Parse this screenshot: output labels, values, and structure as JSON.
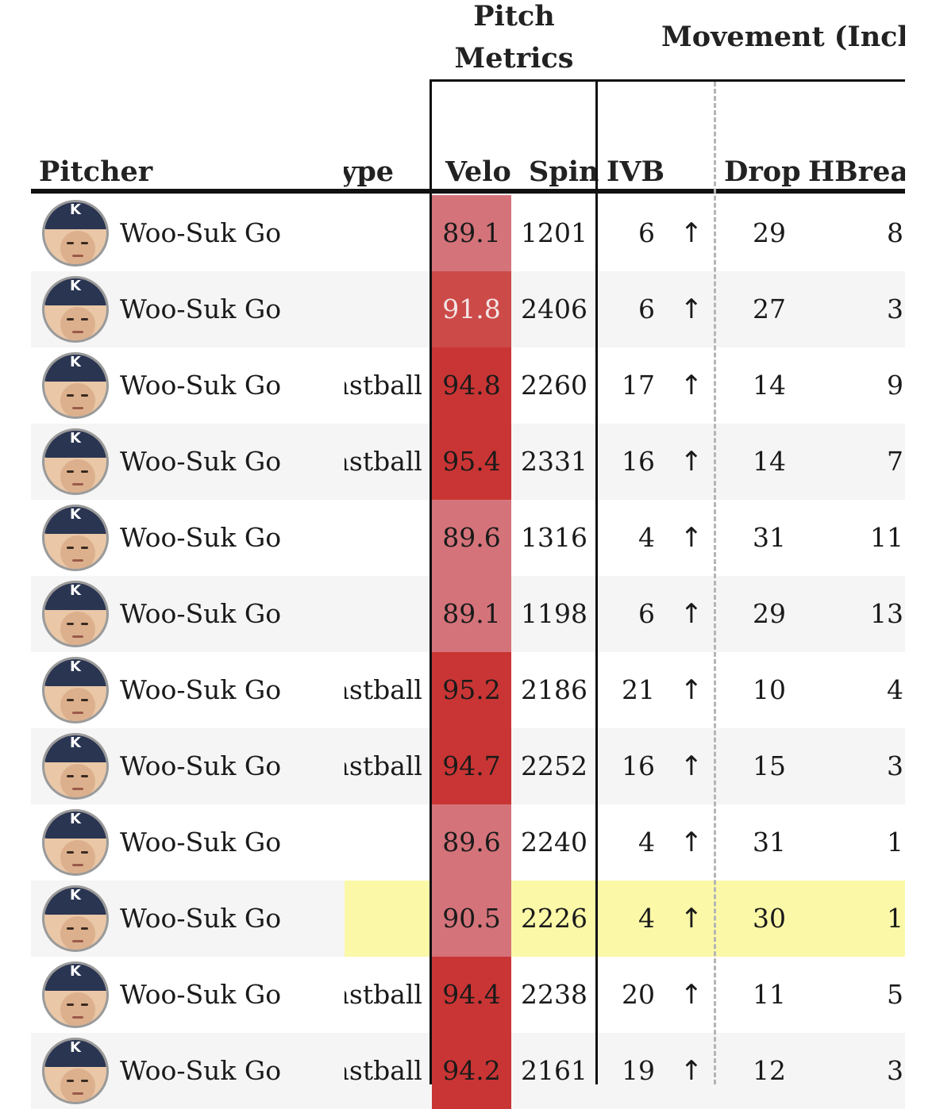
{
  "header": {
    "group_pitch_metrics": "Pitch\nMetrics",
    "group_movement": "Movement (Inches",
    "col_pitcher": "Pitcher",
    "col_type": "ype",
    "col_velo": "Velo",
    "col_spin": "Spin",
    "col_ivb": "IVB",
    "col_drop": "Drop",
    "col_hbreak": "HBreak"
  },
  "colors": {
    "velo_low": "#d4737a",
    "velo_mid": "#cc4a48",
    "velo_high": "#c93534",
    "highlight": "#fbf8a8"
  },
  "icons": {
    "ivb_arrow": "up-arrow-icon",
    "avatar": "player-headshot"
  },
  "rows": [
    {
      "pitcher": "Woo-Suk Go",
      "type": "",
      "velo": "89.1",
      "spin": "1201",
      "ivb": "6",
      "arrow": "↑",
      "drop": "29",
      "hbreak": "8"
    },
    {
      "pitcher": "Woo-Suk Go",
      "type": "",
      "velo": "91.8",
      "spin": "2406",
      "ivb": "6",
      "arrow": "↑",
      "drop": "27",
      "hbreak": "3"
    },
    {
      "pitcher": "Woo-Suk Go",
      "type": "'astball",
      "velo": "94.8",
      "spin": "2260",
      "ivb": "17",
      "arrow": "↑",
      "drop": "14",
      "hbreak": "9"
    },
    {
      "pitcher": "Woo-Suk Go",
      "type": "'astball",
      "velo": "95.4",
      "spin": "2331",
      "ivb": "16",
      "arrow": "↑",
      "drop": "14",
      "hbreak": "7"
    },
    {
      "pitcher": "Woo-Suk Go",
      "type": "",
      "velo": "89.6",
      "spin": "1316",
      "ivb": "4",
      "arrow": "↑",
      "drop": "31",
      "hbreak": "11"
    },
    {
      "pitcher": "Woo-Suk Go",
      "type": "",
      "velo": "89.1",
      "spin": "1198",
      "ivb": "6",
      "arrow": "↑",
      "drop": "29",
      "hbreak": "13"
    },
    {
      "pitcher": "Woo-Suk Go",
      "type": "'astball",
      "velo": "95.2",
      "spin": "2186",
      "ivb": "21",
      "arrow": "↑",
      "drop": "10",
      "hbreak": "4"
    },
    {
      "pitcher": "Woo-Suk Go",
      "type": "'astball",
      "velo": "94.7",
      "spin": "2252",
      "ivb": "16",
      "arrow": "↑",
      "drop": "15",
      "hbreak": "3"
    },
    {
      "pitcher": "Woo-Suk Go",
      "type": "",
      "velo": "89.6",
      "spin": "2240",
      "ivb": "4",
      "arrow": "↑",
      "drop": "31",
      "hbreak": "1"
    },
    {
      "pitcher": "Woo-Suk Go",
      "type": "",
      "velo": "90.5",
      "spin": "2226",
      "ivb": "4",
      "arrow": "↑",
      "drop": "30",
      "hbreak": "1"
    },
    {
      "pitcher": "Woo-Suk Go",
      "type": "'astball",
      "velo": "94.4",
      "spin": "2238",
      "ivb": "20",
      "arrow": "↑",
      "drop": "11",
      "hbreak": "5"
    },
    {
      "pitcher": "Woo-Suk Go",
      "type": "'astball",
      "velo": "94.2",
      "spin": "2161",
      "ivb": "19",
      "arrow": "↑",
      "drop": "12",
      "hbreak": "3"
    }
  ]
}
